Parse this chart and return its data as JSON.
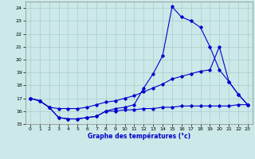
{
  "title": "Graphe des températures (°c)",
  "bg_color": "#cce8e8",
  "grid_color": "#aacccc",
  "line_color": "#0000cc",
  "xlim": [
    -0.5,
    23.5
  ],
  "ylim": [
    15,
    24.5
  ],
  "xticks": [
    0,
    1,
    2,
    3,
    4,
    5,
    6,
    7,
    8,
    9,
    10,
    11,
    12,
    13,
    14,
    15,
    16,
    17,
    18,
    19,
    20,
    21,
    22,
    23
  ],
  "yticks": [
    15,
    16,
    17,
    18,
    19,
    20,
    21,
    22,
    23,
    24
  ],
  "line1_x": [
    0,
    1,
    2,
    3,
    4,
    5,
    6,
    7,
    8,
    9,
    10,
    11,
    12,
    13,
    14,
    15,
    16,
    17,
    18,
    19,
    20,
    21,
    22,
    23
  ],
  "line1_y": [
    17.0,
    16.8,
    16.3,
    15.5,
    15.4,
    15.4,
    15.5,
    15.6,
    16.0,
    16.2,
    16.3,
    16.5,
    17.8,
    18.9,
    20.3,
    24.1,
    23.3,
    23.0,
    22.5,
    21.0,
    19.2,
    18.3,
    17.3,
    16.5
  ],
  "line2_x": [
    0,
    1,
    2,
    3,
    4,
    5,
    6,
    7,
    8,
    9,
    10,
    11,
    12,
    13,
    14,
    15,
    16,
    17,
    18,
    19,
    20,
    21,
    22,
    23
  ],
  "line2_y": [
    17.0,
    16.8,
    16.3,
    16.2,
    16.2,
    16.2,
    16.3,
    16.5,
    16.7,
    16.8,
    17.0,
    17.2,
    17.5,
    17.8,
    18.1,
    18.5,
    18.7,
    18.9,
    19.1,
    19.2,
    21.0,
    18.3,
    17.3,
    16.5
  ],
  "line3_x": [
    0,
    1,
    2,
    3,
    4,
    5,
    6,
    7,
    8,
    9,
    10,
    11,
    12,
    13,
    14,
    15,
    16,
    17,
    18,
    19,
    20,
    21,
    22,
    23
  ],
  "line3_y": [
    17.0,
    16.8,
    16.3,
    15.5,
    15.4,
    15.4,
    15.5,
    15.6,
    16.0,
    16.0,
    16.1,
    16.1,
    16.2,
    16.2,
    16.3,
    16.3,
    16.4,
    16.4,
    16.4,
    16.4,
    16.4,
    16.4,
    16.5,
    16.5
  ]
}
